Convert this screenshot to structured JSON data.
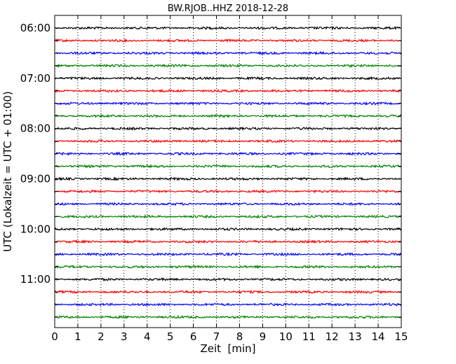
{
  "chart_data": {
    "type": "line",
    "title": "BW.RJOB..HHZ 2018-12-28",
    "xlabel": "Zeit  [min]",
    "ylabel": "UTC (Lokalzeit = UTC + 01:00)",
    "xlim": [
      0,
      15
    ],
    "x_ticks": [
      "0",
      "1",
      "2",
      "3",
      "4",
      "5",
      "6",
      "7",
      "8",
      "9",
      "10",
      "11",
      "12",
      "13",
      "14",
      "15"
    ],
    "y_tick_labels": [
      "06:00",
      "07:00",
      "08:00",
      "09:00",
      "10:00",
      "11:00"
    ],
    "trace_start_times": [
      "06:00",
      "06:15",
      "06:30",
      "06:45",
      "07:00",
      "07:15",
      "07:30",
      "07:45",
      "08:00",
      "08:15",
      "08:30",
      "08:45",
      "09:00",
      "09:15",
      "09:30",
      "09:45",
      "10:00",
      "10:15",
      "10:30",
      "10:45",
      "11:00",
      "11:15",
      "11:30",
      "11:45"
    ],
    "trace_colors": [
      "#000000",
      "#ff0000",
      "#0000ff",
      "#008000"
    ],
    "grid": "vertical dotted at each minute",
    "series_description": "24 seismogram traces of 15 minutes each, stacked top to bottom, color cycling black, red, blue, green"
  }
}
